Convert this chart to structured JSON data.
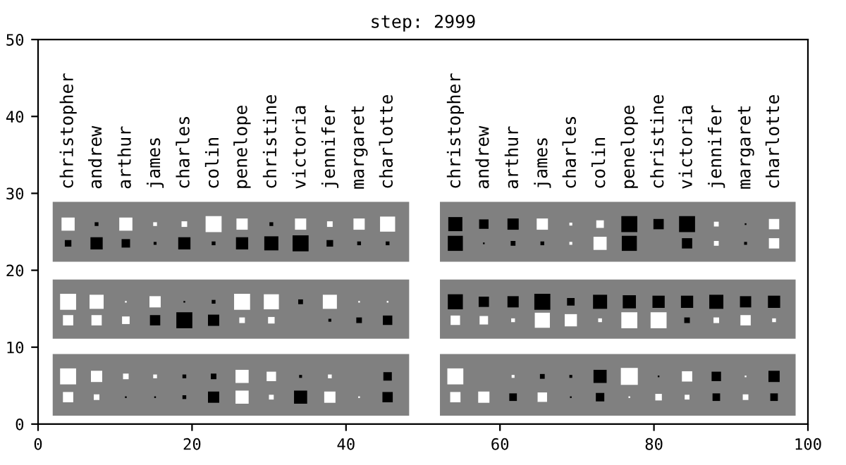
{
  "chart_data": {
    "type": "bubble",
    "title": "step: 2999",
    "marker": "square",
    "grid": false,
    "xlim": [
      0,
      100
    ],
    "ylim": [
      0,
      50
    ],
    "xticks": [
      0,
      20,
      40,
      60,
      80,
      100
    ],
    "yticks": [
      0,
      10,
      20,
      30,
      40,
      50
    ],
    "series": [
      {
        "x": [
          3.9,
          7.6,
          11.4,
          15.2,
          19.0,
          22.8,
          26.5,
          30.3,
          34.1,
          37.9,
          41.7,
          45.4,
          3.9,
          7.6,
          11.4,
          15.2,
          19.0,
          22.8,
          26.5,
          30.3,
          34.1,
          37.9,
          41.7,
          45.4
        ],
        "values": [
          26.0,
          26.0,
          26.0,
          26.0,
          26.0,
          26.0,
          26.0,
          26.0,
          26.0,
          26.0,
          26.0,
          26.0,
          23.5,
          23.5,
          23.5,
          23.5,
          23.5,
          23.5,
          23.5,
          23.5,
          23.5,
          23.5,
          23.5,
          23.5
        ],
        "sizes": [
          0.6,
          0.05,
          0.6,
          0.05,
          0.11,
          0.89,
          0.44,
          0.05,
          0.44,
          0.11,
          0.44,
          0.79,
          0.15,
          0.52,
          0.25,
          0.03,
          0.52,
          0.05,
          0.52,
          0.69,
          0.89,
          0.15,
          0.05,
          0.05
        ],
        "colors": [
          "#ffffff",
          "#000000",
          "#ffffff",
          "#ffffff",
          "#ffffff",
          "#ffffff",
          "#ffffff",
          "#000000",
          "#ffffff",
          "#ffffff",
          "#ffffff",
          "#ffffff",
          "#000000",
          "#000000",
          "#000000",
          "#000000",
          "#000000",
          "#000000",
          "#000000",
          "#000000",
          "#000000",
          "#000000",
          "#000000",
          "#000000"
        ]
      },
      {
        "x": [
          54.2,
          57.9,
          61.7,
          65.5,
          69.2,
          73.0,
          76.8,
          80.6,
          84.3,
          88.1,
          91.9,
          95.6,
          54.2,
          57.9,
          61.7,
          65.5,
          69.2,
          73.0,
          76.8,
          80.6,
          84.3,
          88.1,
          91.9,
          95.6
        ],
        "values": [
          26.0,
          26.0,
          26.0,
          26.0,
          26.0,
          26.0,
          26.0,
          26.0,
          26.0,
          26.0,
          26.0,
          26.0,
          23.5,
          23.5,
          23.5,
          23.5,
          23.5,
          23.5,
          23.5,
          null,
          23.5,
          23.5,
          23.5,
          23.5
        ],
        "sizes": [
          0.69,
          0.31,
          0.44,
          0.44,
          0.03,
          0.2,
          0.89,
          0.37,
          0.89,
          0.08,
          0.01,
          0.37,
          0.79,
          0.01,
          0.08,
          0.05,
          0.03,
          0.6,
          0.79,
          null,
          0.37,
          0.08,
          0.03,
          0.37
        ],
        "colors": [
          "#000000",
          "#000000",
          "#000000",
          "#ffffff",
          "#ffffff",
          "#ffffff",
          "#000000",
          "#000000",
          "#000000",
          "#ffffff",
          "#000000",
          "#ffffff",
          "#000000",
          "#000000",
          "#000000",
          "#000000",
          "#ffffff",
          "#ffffff",
          "#000000",
          null,
          "#000000",
          "#ffffff",
          "#000000",
          "#ffffff"
        ]
      },
      {
        "x": [
          3.9,
          7.6,
          11.4,
          15.2,
          19.0,
          22.8,
          26.5,
          30.3,
          34.1,
          37.9,
          41.7,
          45.4,
          3.9,
          7.6,
          11.4,
          15.2,
          19.0,
          22.8,
          26.5,
          30.3,
          34.1,
          37.9,
          41.7,
          45.4
        ],
        "values": [
          15.9,
          15.9,
          15.9,
          15.9,
          15.9,
          15.9,
          15.9,
          15.9,
          15.9,
          15.9,
          15.9,
          15.9,
          13.5,
          13.5,
          13.5,
          13.5,
          13.5,
          13.5,
          13.5,
          13.5,
          null,
          13.5,
          13.5,
          13.5
        ],
        "sizes": [
          0.89,
          0.69,
          0.01,
          0.44,
          0.01,
          0.05,
          0.89,
          0.79,
          0.08,
          0.69,
          0.01,
          0.01,
          0.37,
          0.37,
          0.2,
          0.37,
          0.89,
          0.44,
          0.11,
          0.15,
          null,
          0.03,
          0.11,
          0.31
        ],
        "colors": [
          "#ffffff",
          "#ffffff",
          "#ffffff",
          "#ffffff",
          "#000000",
          "#000000",
          "#ffffff",
          "#ffffff",
          "#000000",
          "#ffffff",
          "#ffffff",
          "#ffffff",
          "#ffffff",
          "#ffffff",
          "#ffffff",
          "#000000",
          "#000000",
          "#000000",
          "#ffffff",
          "#ffffff",
          null,
          "#000000",
          "#000000",
          "#000000"
        ]
      },
      {
        "x": [
          54.2,
          57.9,
          61.7,
          65.5,
          69.2,
          73.0,
          76.8,
          80.6,
          84.3,
          88.1,
          91.9,
          95.6,
          54.2,
          57.9,
          61.7,
          65.5,
          69.2,
          73.0,
          76.8,
          80.6,
          84.3,
          88.1,
          91.9,
          95.6
        ],
        "values": [
          15.9,
          15.9,
          15.9,
          15.9,
          15.9,
          15.9,
          15.9,
          15.9,
          15.9,
          15.9,
          15.9,
          15.9,
          13.5,
          13.5,
          13.5,
          13.5,
          13.5,
          13.5,
          13.5,
          13.5,
          13.5,
          13.5,
          13.5,
          13.5
        ],
        "sizes": [
          0.79,
          0.37,
          0.44,
          0.89,
          0.2,
          0.69,
          0.6,
          0.52,
          0.52,
          0.69,
          0.44,
          0.52,
          0.31,
          0.25,
          0.05,
          0.79,
          0.52,
          0.05,
          0.89,
          0.89,
          0.11,
          0.11,
          0.37,
          0.05
        ],
        "colors": [
          "#000000",
          "#000000",
          "#000000",
          "#000000",
          "#000000",
          "#000000",
          "#000000",
          "#000000",
          "#000000",
          "#000000",
          "#000000",
          "#000000",
          "#ffffff",
          "#ffffff",
          "#ffffff",
          "#ffffff",
          "#ffffff",
          "#ffffff",
          "#ffffff",
          "#ffffff",
          "#000000",
          "#ffffff",
          "#ffffff",
          "#ffffff"
        ]
      },
      {
        "x": [
          3.9,
          7.6,
          11.4,
          15.2,
          19.0,
          22.8,
          26.5,
          30.3,
          34.1,
          37.9,
          41.7,
          45.4,
          3.9,
          7.6,
          11.4,
          15.2,
          19.0,
          22.8,
          26.5,
          30.3,
          34.1,
          37.9,
          41.7,
          45.4
        ],
        "values": [
          6.2,
          6.2,
          6.2,
          6.2,
          6.2,
          6.2,
          6.2,
          6.2,
          6.2,
          6.2,
          null,
          6.2,
          3.5,
          3.5,
          3.5,
          3.5,
          3.5,
          3.5,
          3.5,
          3.5,
          3.5,
          3.5,
          3.5,
          3.5
        ],
        "sizes": [
          0.89,
          0.44,
          0.11,
          0.05,
          0.05,
          0.11,
          0.6,
          0.31,
          0.03,
          0.05,
          null,
          0.25,
          0.37,
          0.11,
          0.01,
          0.01,
          0.05,
          0.44,
          0.6,
          0.08,
          0.6,
          0.44,
          0.01,
          0.37
        ],
        "colors": [
          "#ffffff",
          "#ffffff",
          "#ffffff",
          "#ffffff",
          "#000000",
          "#000000",
          "#ffffff",
          "#ffffff",
          "#000000",
          "#ffffff",
          null,
          "#000000",
          "#ffffff",
          "#ffffff",
          "#000000",
          "#000000",
          "#000000",
          "#000000",
          "#ffffff",
          "#ffffff",
          "#000000",
          "#ffffff",
          "#ffffff",
          "#000000"
        ]
      },
      {
        "x": [
          54.2,
          57.9,
          61.7,
          65.5,
          69.2,
          73.0,
          76.8,
          80.6,
          84.3,
          88.1,
          91.9,
          95.6,
          54.2,
          57.9,
          61.7,
          65.5,
          69.2,
          73.0,
          76.8,
          80.6,
          84.3,
          88.1,
          91.9,
          95.6
        ],
        "values": [
          6.2,
          null,
          6.2,
          6.2,
          6.2,
          6.2,
          6.2,
          6.2,
          6.2,
          6.2,
          6.2,
          6.2,
          3.5,
          3.5,
          3.5,
          3.5,
          3.5,
          3.5,
          3.5,
          3.5,
          3.5,
          3.5,
          3.5,
          3.5
        ],
        "sizes": [
          0.89,
          null,
          0.03,
          0.08,
          0.03,
          0.6,
          1,
          0.01,
          0.37,
          0.31,
          0.01,
          0.44,
          0.37,
          0.44,
          0.2,
          0.31,
          0.01,
          0.25,
          0.01,
          0.15,
          0.08,
          0.2,
          0.11,
          0.2
        ],
        "colors": [
          "#ffffff",
          null,
          "#ffffff",
          "#000000",
          "#000000",
          "#000000",
          "#ffffff",
          "#000000",
          "#ffffff",
          "#000000",
          "#ffffff",
          "#000000",
          "#ffffff",
          "#ffffff",
          "#000000",
          "#ffffff",
          "#000000",
          "#000000",
          "#ffffff",
          "#ffffff",
          "#ffffff",
          "#000000",
          "#ffffff",
          "#000000"
        ]
      }
    ],
    "annotations": [
      "christopher",
      "andrew",
      "arthur",
      "james",
      "charles",
      "colin",
      "penelope",
      "christine",
      "victoria",
      "jennifer",
      "margaret",
      "charlotte",
      "christopher",
      "andrew",
      "arthur",
      "james",
      "charles",
      "colin",
      "penelope",
      "christine",
      "victoria",
      "jennifer",
      "margaret",
      "charlotte"
    ]
  }
}
